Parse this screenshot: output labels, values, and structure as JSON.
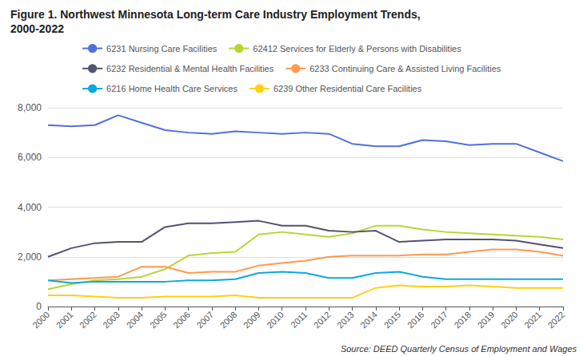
{
  "chart_data": {
    "type": "line",
    "title": "Figure 1. Northwest Minnesota Long-term Care Industry Employment Trends,",
    "subtitle": "2000-2022",
    "annotations": [
      "Source: DEED Quarterly Census of Employment and Wages"
    ],
    "categories": [
      "2000",
      "2001",
      "2002",
      "2003",
      "2004",
      "2005",
      "2006",
      "2007",
      "2008",
      "2009",
      "2010",
      "2011",
      "2012",
      "2013",
      "2014",
      "2015",
      "2016",
      "2017",
      "2018",
      "2019",
      "2020",
      "2021",
      "2022"
    ],
    "series": [
      {
        "name": "6231 Nursing Care Facilities",
        "values": [
          7300,
          7250,
          7300,
          7700,
          7400,
          7100,
          7000,
          6950,
          7050,
          7000,
          6950,
          7000,
          6950,
          6550,
          6450,
          6450,
          6700,
          6650,
          6500,
          6550,
          6550,
          6200,
          5850
        ]
      },
      {
        "name": "62412 Services for Elderly & Persons with Disabilities",
        "values": [
          700,
          900,
          1050,
          1100,
          1200,
          1500,
          2050,
          2150,
          2200,
          2900,
          3000,
          2900,
          2800,
          2950,
          3250,
          3250,
          3100,
          3000,
          2950,
          2900,
          2850,
          2800,
          2700
        ]
      },
      {
        "name": "6232 Residential & Mental Health Facilities",
        "values": [
          2000,
          2350,
          2550,
          2600,
          2600,
          3200,
          3350,
          3350,
          3400,
          3450,
          3250,
          3250,
          3050,
          3000,
          3050,
          2600,
          2650,
          2700,
          2700,
          2700,
          2650,
          2500,
          2350
        ]
      },
      {
        "name": "6233 Continuing Care & Assisted Living Facilities",
        "values": [
          1050,
          1100,
          1150,
          1200,
          1600,
          1600,
          1350,
          1400,
          1400,
          1650,
          1750,
          1850,
          2000,
          2050,
          2050,
          2050,
          2100,
          2100,
          2200,
          2300,
          2300,
          2200,
          2050
        ]
      },
      {
        "name": "6216 Home Health Care Services",
        "values": [
          1050,
          950,
          1000,
          1000,
          1000,
          1000,
          1050,
          1050,
          1100,
          1350,
          1400,
          1350,
          1150,
          1150,
          1350,
          1400,
          1200,
          1100,
          1100,
          1100,
          1100,
          1100,
          1100
        ]
      },
      {
        "name": "6239 Other Residential Care Facilities",
        "values": [
          450,
          450,
          400,
          350,
          350,
          400,
          400,
          400,
          450,
          350,
          350,
          350,
          350,
          350,
          750,
          850,
          800,
          800,
          850,
          800,
          750,
          750,
          750
        ]
      }
    ],
    "ylim": [
      0,
      8000
    ],
    "yticks": [
      0,
      {
        "value": 2000,
        "label": "2,000"
      },
      {
        "value": 4000,
        "label": "4,000"
      },
      {
        "value": 6000,
        "label": "6,000"
      },
      {
        "value": 8000,
        "label": "8,000"
      }
    ],
    "grid": true,
    "legend": "top"
  }
}
